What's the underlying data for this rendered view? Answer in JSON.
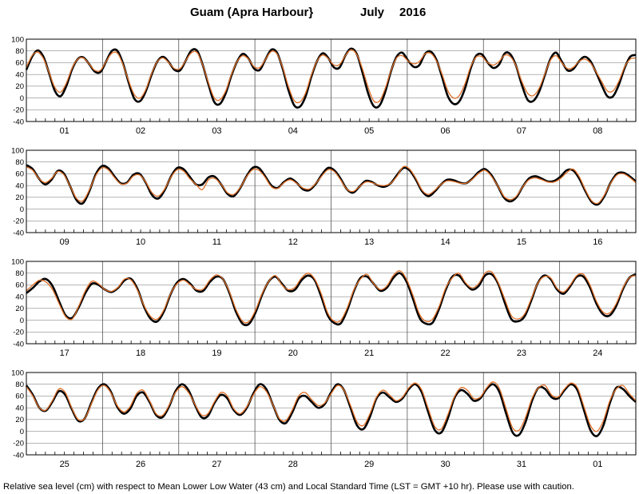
{
  "chart_data": {
    "type": "line",
    "title_location": "Guam (Apra Harbour}",
    "title_month": "July",
    "title_year": "2016",
    "footer": "Relative sea level (cm) with respect to Mean Lower Low Water (43 cm) and Local Standard Time (LST = GMT +10 hr). Please use with caution.",
    "ylim": [
      -40,
      100
    ],
    "yticks": [
      100,
      80,
      60,
      40,
      20,
      0,
      -20,
      -40
    ],
    "grid": true,
    "series": [
      {
        "key": "observed",
        "color": "#000000"
      },
      {
        "key": "predicted",
        "color": "#e07028"
      }
    ],
    "panels": [
      {
        "days": [
          "01",
          "02",
          "03",
          "04",
          "05",
          "06",
          "07",
          "08"
        ],
        "observed": [
          48,
          70,
          81,
          70,
          42,
          12,
          3,
          20,
          48,
          66,
          69,
          58,
          45,
          44,
          62,
          80,
          80,
          58,
          25,
          -2,
          -5,
          12,
          40,
          62,
          70,
          61,
          48,
          47,
          64,
          81,
          80,
          55,
          22,
          -7,
          -10,
          8,
          38,
          62,
          75,
          67,
          50,
          48,
          66,
          82,
          77,
          50,
          14,
          -12,
          -15,
          2,
          35,
          62,
          76,
          68,
          52,
          52,
          72,
          84,
          75,
          44,
          8,
          -14,
          -13,
          10,
          45,
          70,
          77,
          64,
          53,
          56,
          75,
          79,
          65,
          35,
          3,
          -10,
          -6,
          16,
          50,
          72,
          74,
          60,
          51,
          57,
          76,
          74,
          54,
          22,
          -3,
          -5,
          10,
          38,
          66,
          77,
          62,
          47,
          49,
          62,
          70,
          63,
          44,
          22,
          3,
          3,
          22,
          50,
          70,
          73
        ],
        "predicted": [
          52,
          72,
          78,
          67,
          43,
          18,
          10,
          25,
          50,
          66,
          68,
          58,
          47,
          47,
          62,
          76,
          76,
          56,
          28,
          5,
          0,
          15,
          42,
          62,
          68,
          60,
          50,
          50,
          64,
          77,
          77,
          55,
          25,
          0,
          -3,
          12,
          40,
          62,
          72,
          66,
          53,
          52,
          66,
          79,
          75,
          52,
          20,
          -4,
          -7,
          8,
          38,
          62,
          73,
          67,
          56,
          57,
          72,
          82,
          74,
          50,
          18,
          -5,
          -5,
          16,
          46,
          68,
          72,
          63,
          58,
          62,
          75,
          76,
          63,
          40,
          12,
          0,
          4,
          24,
          53,
          70,
          70,
          60,
          56,
          62,
          73,
          70,
          54,
          28,
          8,
          4,
          16,
          40,
          64,
          72,
          60,
          50,
          52,
          62,
          66,
          60,
          45,
          28,
          12,
          12,
          28,
          52,
          66,
          68
        ]
      },
      {
        "days": [
          "09",
          "10",
          "11",
          "12",
          "13",
          "14",
          "15",
          "16"
        ],
        "observed": [
          75,
          68,
          52,
          42,
          50,
          65,
          60,
          38,
          15,
          10,
          30,
          58,
          73,
          70,
          56,
          44,
          45,
          58,
          60,
          45,
          24,
          18,
          32,
          55,
          70,
          68,
          55,
          42,
          42,
          54,
          55,
          42,
          26,
          22,
          35,
          55,
          70,
          70,
          56,
          40,
          36,
          46,
          52,
          45,
          34,
          32,
          42,
          58,
          70,
          66,
          52,
          34,
          28,
          38,
          48,
          46,
          40,
          38,
          44,
          58,
          70,
          66,
          50,
          30,
          22,
          30,
          42,
          50,
          49,
          45,
          44,
          52,
          63,
          68,
          58,
          40,
          20,
          13,
          20,
          38,
          52,
          56,
          52,
          47,
          48,
          55,
          66,
          66,
          52,
          30,
          12,
          8,
          22,
          45,
          60,
          62,
          56,
          47
        ],
        "predicted": [
          72,
          66,
          52,
          45,
          52,
          64,
          58,
          38,
          18,
          14,
          32,
          56,
          70,
          67,
          54,
          43,
          44,
          56,
          58,
          46,
          28,
          22,
          34,
          54,
          67,
          65,
          52,
          42,
          33,
          50,
          52,
          42,
          28,
          25,
          36,
          54,
          67,
          66,
          54,
          38,
          35,
          45,
          50,
          44,
          36,
          34,
          43,
          56,
          67,
          64,
          50,
          34,
          30,
          38,
          46,
          45,
          41,
          40,
          44,
          56,
          72,
          68,
          52,
          32,
          25,
          32,
          42,
          48,
          47,
          44,
          44,
          51,
          61,
          66,
          56,
          40,
          22,
          16,
          22,
          38,
          50,
          53,
          50,
          46,
          46,
          52,
          62,
          68,
          55,
          32,
          14,
          10,
          24,
          44,
          58,
          60,
          54,
          45
        ]
      },
      {
        "days": [
          "17",
          "18",
          "19",
          "20",
          "21",
          "22",
          "23",
          "24"
        ],
        "observed": [
          46,
          55,
          66,
          70,
          58,
          32,
          8,
          4,
          22,
          46,
          62,
          60,
          52,
          48,
          55,
          68,
          70,
          52,
          22,
          2,
          -2,
          15,
          44,
          64,
          70,
          62,
          50,
          50,
          65,
          74,
          70,
          46,
          14,
          -6,
          -6,
          14,
          44,
          66,
          74,
          62,
          50,
          52,
          68,
          76,
          68,
          40,
          8,
          -5,
          -5,
          18,
          50,
          72,
          74,
          62,
          50,
          55,
          72,
          80,
          66,
          36,
          4,
          -6,
          -4,
          20,
          52,
          74,
          76,
          62,
          52,
          58,
          76,
          78,
          62,
          30,
          2,
          -2,
          6,
          32,
          62,
          76,
          70,
          52,
          45,
          58,
          74,
          74,
          56,
          28,
          10,
          8,
          24,
          52,
          72,
          78
        ],
        "predicted": [
          50,
          60,
          68,
          65,
          52,
          28,
          6,
          2,
          24,
          50,
          66,
          62,
          52,
          49,
          56,
          70,
          68,
          50,
          24,
          6,
          2,
          18,
          45,
          62,
          68,
          60,
          52,
          53,
          68,
          77,
          70,
          48,
          18,
          -2,
          -2,
          18,
          46,
          66,
          76,
          60,
          52,
          56,
          72,
          80,
          70,
          45,
          12,
          -2,
          0,
          22,
          52,
          70,
          78,
          62,
          52,
          58,
          76,
          84,
          70,
          42,
          10,
          -2,
          2,
          24,
          55,
          72,
          80,
          64,
          55,
          62,
          80,
          82,
          64,
          36,
          8,
          2,
          10,
          35,
          62,
          74,
          72,
          54,
          48,
          60,
          76,
          78,
          60,
          32,
          14,
          12,
          28,
          54,
          72,
          76
        ]
      },
      {
        "days": [
          "25",
          "26",
          "27",
          "28",
          "29",
          "30",
          "31",
          "01"
        ],
        "observed": [
          78,
          62,
          40,
          35,
          50,
          68,
          62,
          38,
          18,
          22,
          48,
          72,
          80,
          68,
          42,
          30,
          38,
          60,
          66,
          50,
          28,
          24,
          42,
          68,
          80,
          70,
          45,
          24,
          26,
          48,
          62,
          56,
          36,
          28,
          40,
          64,
          80,
          72,
          46,
          20,
          14,
          32,
          56,
          60,
          50,
          40,
          46,
          66,
          80,
          70,
          40,
          10,
          4,
          25,
          56,
          66,
          58,
          50,
          56,
          72,
          80,
          66,
          32,
          2,
          -2,
          22,
          56,
          70,
          64,
          52,
          56,
          72,
          80,
          66,
          30,
          -2,
          -6,
          16,
          52,
          74,
          72,
          58,
          56,
          70,
          80,
          70,
          36,
          2,
          -8,
          10,
          48,
          74,
          72,
          60,
          50
        ],
        "predicted": [
          76,
          60,
          40,
          36,
          52,
          72,
          66,
          40,
          20,
          22,
          46,
          70,
          78,
          66,
          44,
          33,
          42,
          64,
          70,
          52,
          30,
          27,
          44,
          66,
          76,
          66,
          46,
          28,
          30,
          50,
          66,
          60,
          38,
          30,
          42,
          62,
          76,
          68,
          46,
          22,
          18,
          36,
          60,
          66,
          54,
          44,
          48,
          64,
          78,
          70,
          44,
          16,
          10,
          30,
          58,
          70,
          62,
          52,
          58,
          74,
          82,
          70,
          38,
          8,
          4,
          28,
          58,
          74,
          70,
          56,
          58,
          74,
          84,
          72,
          38,
          6,
          2,
          24,
          56,
          74,
          78,
          62,
          58,
          72,
          82,
          74,
          42,
          10,
          0,
          18,
          52,
          72,
          78,
          64,
          52
        ]
      }
    ]
  }
}
